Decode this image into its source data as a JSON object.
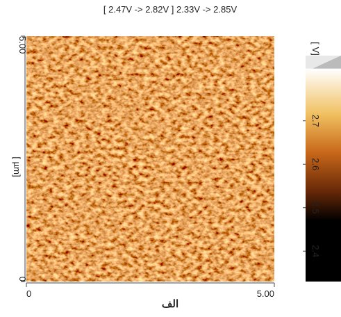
{
  "chart_data": {
    "type": "heatmap",
    "title": "[ 2.47V  ->  2.82V ] 2.33V  ->  2.85V",
    "caption": "الف",
    "y_label": "[ µm]",
    "colorbar_label": "[ V]",
    "xlim": [
      0,
      5
    ],
    "ylim": [
      0,
      5
    ],
    "xticks": [
      0,
      {
        "value": 5,
        "label": "5.00"
      }
    ],
    "yticks": [
      0,
      {
        "value": 5,
        "label": "5.00"
      }
    ],
    "clim": [
      2.33,
      2.85
    ],
    "color_range": [
      2.47,
      2.82
    ],
    "cticks": [
      2.4,
      2.5,
      2.6,
      2.7
    ]
  }
}
